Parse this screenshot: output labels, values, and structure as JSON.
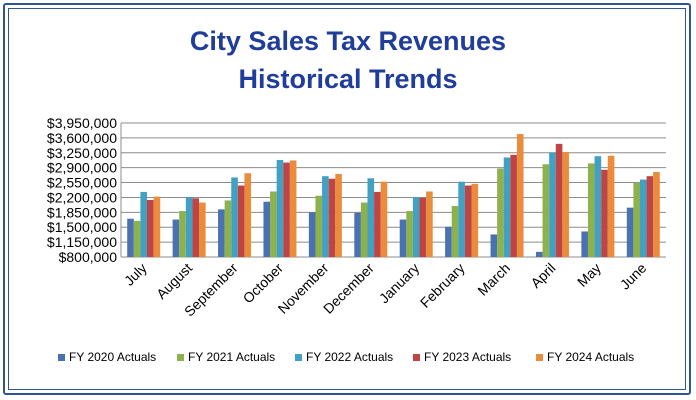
{
  "chart_data": {
    "type": "bar",
    "title": [
      "City Sales Tax Revenues",
      "Historical Trends"
    ],
    "categories": [
      "July",
      "August",
      "September",
      "October",
      "November",
      "December",
      "January",
      "February",
      "March",
      "April",
      "May",
      "June"
    ],
    "yticks": [
      "$800,000",
      "$1,150,000",
      "$1,500,000",
      "$1,850,000",
      "$2,200,000",
      "$2,550,000",
      "$2,900,000",
      "$3,250,000",
      "$3,600,000",
      "$3,950,000"
    ],
    "ylim": [
      800000,
      3950000
    ],
    "grid": true,
    "legend_position": "bottom",
    "series": [
      {
        "name": "FY 2020 Actuals",
        "color": "#4a72b0",
        "values": [
          1700000,
          1680000,
          1920000,
          2100000,
          1850000,
          1840000,
          1680000,
          1510000,
          1330000,
          920000,
          1400000,
          1960000
        ]
      },
      {
        "name": "FY 2021 Actuals",
        "color": "#8db24d",
        "values": [
          1650000,
          1880000,
          2130000,
          2340000,
          2240000,
          2080000,
          1880000,
          2000000,
          2880000,
          2980000,
          3000000,
          2550000
        ]
      },
      {
        "name": "FY 2022 Actuals",
        "color": "#42a0c3",
        "values": [
          2330000,
          2210000,
          2670000,
          3080000,
          2700000,
          2650000,
          2210000,
          2570000,
          3140000,
          3260000,
          3170000,
          2620000
        ]
      },
      {
        "name": "FY 2023 Actuals",
        "color": "#be4545",
        "values": [
          2140000,
          2180000,
          2480000,
          3020000,
          2640000,
          2330000,
          2190000,
          2480000,
          3200000,
          3460000,
          2850000,
          2700000
        ]
      },
      {
        "name": "FY 2024 Actuals",
        "color": "#eb8c3c",
        "values": [
          2220000,
          2080000,
          2770000,
          3070000,
          2750000,
          2570000,
          2340000,
          2520000,
          3690000,
          3270000,
          3180000,
          2800000
        ]
      }
    ]
  }
}
